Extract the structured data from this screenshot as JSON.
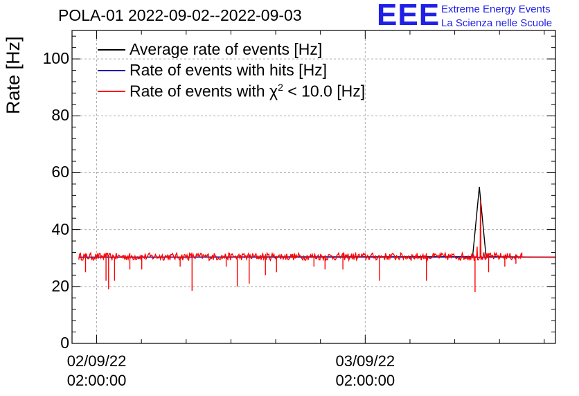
{
  "chart_data": {
    "type": "line",
    "title": "POLA-01 2022-09-02--2022-09-03",
    "xlabel": "",
    "ylabel": "Rate [Hz]",
    "ylim": [
      0,
      110
    ],
    "yticks": [
      0,
      20,
      40,
      60,
      80,
      100
    ],
    "ytick_labels": [
      "0",
      "20",
      "40",
      "60",
      "80",
      "100"
    ],
    "xlim_hours": [
      -2.2,
      41
    ],
    "xticks": [
      {
        "hours": 0,
        "date": "02/09/22",
        "time": "02:00:00"
      },
      {
        "hours": 24,
        "date": "03/09/22",
        "time": "02:00:00"
      }
    ],
    "grid": true,
    "legend_position": "top-left",
    "legend": [
      {
        "label": "Average rate of events [Hz]",
        "color": "#000000"
      },
      {
        "label": "Rate of events with hits [Hz]",
        "color": "#1a1ab8"
      },
      {
        "label_prefix": "Rate of events with χ",
        "label_sup": "2",
        "label_suffix": " < 10.0 [Hz]",
        "color": "#ff0000"
      }
    ],
    "series": [
      {
        "name": "Average rate of events [Hz]",
        "color": "#000000",
        "baseline": 30.5,
        "points": [
          [
            -1.6,
            30.3
          ],
          [
            33.6,
            30.5
          ],
          [
            34.2,
            55
          ],
          [
            34.8,
            30.5
          ],
          [
            41,
            30.3
          ]
        ]
      },
      {
        "name": "Rate of events with hits [Hz]",
        "color": "#1a1ab8",
        "baseline": 30.5,
        "points": [
          [
            -1.6,
            30.3
          ],
          [
            41,
            30.3
          ]
        ]
      },
      {
        "name": "Rate of events with χ2 < 10.0 [Hz]",
        "color": "#ff0000",
        "baseline": 30.5,
        "noise": 1.3,
        "range_hours": [
          -1.6,
          38.0
        ],
        "tail": [
          [
            38.0,
            30.3
          ],
          [
            41,
            30.3
          ]
        ],
        "spike": [
          [
            34.0,
            34
          ],
          [
            34.3,
            50
          ],
          [
            34.6,
            32
          ]
        ],
        "dips": [
          [
            -1.0,
            25
          ],
          [
            0.8,
            22
          ],
          [
            1.1,
            19
          ],
          [
            1.6,
            22
          ],
          [
            3.0,
            26
          ],
          [
            4.0,
            26
          ],
          [
            7.5,
            27
          ],
          [
            8.5,
            18.5
          ],
          [
            11.6,
            27
          ],
          [
            12.6,
            20
          ],
          [
            13.6,
            21
          ],
          [
            15.1,
            24
          ],
          [
            16.1,
            25
          ],
          [
            19.4,
            27
          ],
          [
            20.4,
            26
          ],
          [
            22.0,
            26
          ],
          [
            25.3,
            22
          ],
          [
            29.5,
            22
          ],
          [
            33.8,
            18
          ],
          [
            35.0,
            25
          ],
          [
            36.5,
            27
          ],
          [
            37.5,
            28
          ]
        ]
      }
    ]
  },
  "logo": {
    "mark": "EEE",
    "line1": "Extreme Energy Events",
    "line2": "La Scienza nelle Scuole"
  }
}
